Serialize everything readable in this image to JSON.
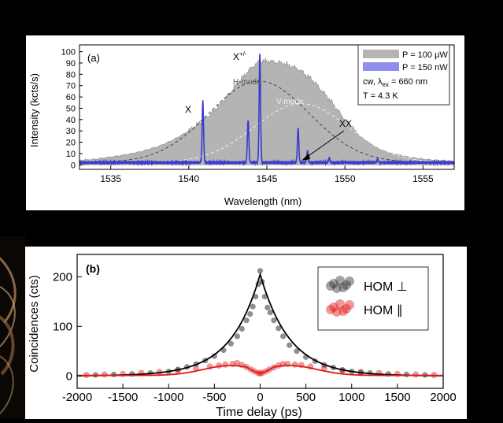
{
  "colors": {
    "gray_fill": "#b4b4b4",
    "gray_stroke": "#8a8a8a",
    "blue": "#3a3ad0",
    "blue_legend": "#8f8ff0",
    "red": "#e01818",
    "red_legend": "#ff5a5a",
    "black": "#000000",
    "mode_dash_dark": "#444444",
    "mode_dash_light": "#f0f0f0"
  },
  "chart_data": [
    {
      "type": "area",
      "panel_label": "(a)",
      "xlabel": "Wavelength (nm)",
      "ylabel": "Intensity (kcts/s)",
      "xlim": [
        1533,
        1557
      ],
      "ylim": [
        -4,
        106
      ],
      "xticks": [
        1535,
        1540,
        1545,
        1550,
        1555
      ],
      "yticks": [
        0,
        10,
        20,
        30,
        40,
        50,
        60,
        70,
        80,
        90,
        100
      ],
      "legend": {
        "position": "top-right",
        "entries": [
          {
            "label": "P = 100 μW",
            "series": "high_power"
          },
          {
            "label": "P = 150 nW",
            "series": "low_power"
          }
        ],
        "conditions_line1_prefix": "cw, λ",
        "conditions_line1_subscript": "ex",
        "conditions_line1_suffix": " = 660 nm",
        "conditions_line2": "T = 4.3 K"
      },
      "annotations": {
        "x_label": "X",
        "xpm_base": "X",
        "xpm_superscript": "+/-",
        "xx_label": "XX",
        "h_mode": "H-mode",
        "v_mode": "V-mode"
      },
      "series": [
        {
          "name": "P = 100 μW",
          "x": [
            1533,
            1534,
            1535,
            1536,
            1537,
            1538,
            1539,
            1540,
            1541,
            1542,
            1543,
            1544,
            1544.5,
            1545,
            1546,
            1547,
            1548,
            1549,
            1550,
            1551,
            1552,
            1553,
            1554,
            1555,
            1556,
            1557
          ],
          "y": [
            4,
            5,
            7,
            9,
            12,
            16,
            22,
            30,
            40,
            53,
            70,
            86,
            91,
            92,
            90,
            85,
            74,
            58,
            40,
            25,
            15,
            10,
            7,
            5,
            4,
            3
          ]
        },
        {
          "name": "P = 150 nW",
          "baseline": 2,
          "peaks": [
            {
              "x": 1540.9,
              "y": 54
            },
            {
              "x": 1543.8,
              "y": 38
            },
            {
              "x": 1544.55,
              "y": 97
            },
            {
              "x": 1547.0,
              "y": 30
            },
            {
              "x": 1547.6,
              "y": 10
            },
            {
              "x": 1549.0,
              "y": 4
            },
            {
              "x": 1552.1,
              "y": 3
            }
          ]
        },
        {
          "name": "H-mode",
          "style": "dashed",
          "center": 1544.5,
          "amplitude": 72,
          "sigma": 3.2
        },
        {
          "name": "V-mode",
          "style": "dashed",
          "center": 1547.2,
          "amplitude": 52,
          "sigma": 3.0
        }
      ]
    },
    {
      "type": "scatter",
      "panel_label": "(b)",
      "xlabel": "Time delay (ps)",
      "ylabel": "Coincidences (cts)",
      "xlim": [
        -2000,
        2000
      ],
      "ylim": [
        -25,
        245
      ],
      "xticks": [
        -2000,
        -1500,
        -1000,
        -500,
        0,
        500,
        1000,
        1500,
        2000
      ],
      "yticks": [
        0,
        100,
        200
      ],
      "legend": {
        "position": "top-right",
        "entries": [
          {
            "label": "HOM ⊥",
            "series": "perpendicular"
          },
          {
            "label": "HOM ∥",
            "series": "parallel"
          }
        ]
      },
      "series": [
        {
          "name": "HOM ⊥",
          "fit": {
            "peak": 205,
            "decay_ps": 320
          },
          "points": [
            [
              -1800,
              2
            ],
            [
              -1600,
              3
            ],
            [
              -1400,
              4
            ],
            [
              -1200,
              6
            ],
            [
              -1000,
              9
            ],
            [
              -900,
              13
            ],
            [
              -800,
              18
            ],
            [
              -700,
              24
            ],
            [
              -600,
              31
            ],
            [
              -500,
              40
            ],
            [
              -400,
              52
            ],
            [
              -320,
              65
            ],
            [
              -250,
              80
            ],
            [
              -200,
              95
            ],
            [
              -150,
              112
            ],
            [
              -110,
              125
            ],
            [
              -80,
              140
            ],
            [
              -50,
              160
            ],
            [
              -20,
              185
            ],
            [
              0,
              212
            ],
            [
              20,
              190
            ],
            [
              50,
              160
            ],
            [
              80,
              138
            ],
            [
              110,
              128
            ],
            [
              150,
              112
            ],
            [
              200,
              96
            ],
            [
              250,
              80
            ],
            [
              320,
              62
            ],
            [
              400,
              50
            ],
            [
              500,
              38
            ],
            [
              600,
              30
            ],
            [
              700,
              22
            ],
            [
              800,
              17
            ],
            [
              900,
              12
            ],
            [
              1000,
              9
            ],
            [
              1100,
              7
            ],
            [
              1200,
              6
            ],
            [
              1400,
              4
            ],
            [
              1600,
              3
            ],
            [
              1800,
              2
            ]
          ]
        },
        {
          "name": "HOM ∥",
          "fit": {
            "bump_peak": 20,
            "bump_center_ps": 320,
            "dip_value": 5
          },
          "points": [
            [
              -1900,
              2
            ],
            [
              -1700,
              3
            ],
            [
              -1500,
              4
            ],
            [
              -1300,
              6
            ],
            [
              -1100,
              8
            ],
            [
              -900,
              11
            ],
            [
              -700,
              15
            ],
            [
              -550,
              19
            ],
            [
              -450,
              21
            ],
            [
              -380,
              23
            ],
            [
              -300,
              24
            ],
            [
              -250,
              26
            ],
            [
              -200,
              22
            ],
            [
              -150,
              18
            ],
            [
              -100,
              13
            ],
            [
              -60,
              9
            ],
            [
              -20,
              6
            ],
            [
              0,
              5
            ],
            [
              20,
              6
            ],
            [
              60,
              9
            ],
            [
              100,
              13
            ],
            [
              150,
              17
            ],
            [
              200,
              21
            ],
            [
              250,
              24
            ],
            [
              300,
              24
            ],
            [
              380,
              23
            ],
            [
              450,
              22
            ],
            [
              550,
              19
            ],
            [
              700,
              15
            ],
            [
              900,
              11
            ],
            [
              1100,
              8
            ],
            [
              1300,
              6
            ],
            [
              1500,
              4
            ],
            [
              1700,
              3
            ],
            [
              1900,
              2
            ]
          ]
        }
      ]
    }
  ]
}
